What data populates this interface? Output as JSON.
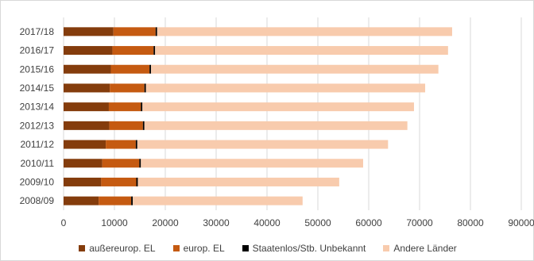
{
  "chart_data": {
    "type": "bar",
    "orientation": "horizontal",
    "stacked": true,
    "categories": [
      "2017/18",
      "2016/17",
      "2015/16",
      "2014/15",
      "2013/14",
      "2012/13",
      "2011/12",
      "2010/11",
      "2009/10",
      "2008/09"
    ],
    "series": [
      {
        "name": "außereurop. EL",
        "color": "#843c0c",
        "values": [
          9800,
          9600,
          9300,
          9100,
          8900,
          9000,
          8300,
          7600,
          7400,
          6900
        ]
      },
      {
        "name": "europ. EL",
        "color": "#c55a11",
        "values": [
          8300,
          8100,
          7600,
          6800,
          6300,
          6600,
          5900,
          7300,
          6900,
          6400
        ]
      },
      {
        "name": "Staatenlos/Stb. Unbekannt",
        "color": "#000000",
        "values": [
          300,
          300,
          300,
          300,
          300,
          300,
          300,
          300,
          300,
          300
        ]
      },
      {
        "name": "Andere Länder",
        "color": "#f8cbad",
        "values": [
          58000,
          57600,
          56500,
          54900,
          53400,
          51700,
          49300,
          43700,
          39600,
          33400
        ]
      }
    ],
    "xlim": [
      0,
      90000
    ],
    "xticks": [
      "0",
      "10000",
      "20000",
      "30000",
      "40000",
      "50000",
      "60000",
      "70000",
      "80000",
      "90000"
    ],
    "xlabel": "",
    "ylabel": "",
    "grid": "vertical",
    "legend": "bottom"
  }
}
